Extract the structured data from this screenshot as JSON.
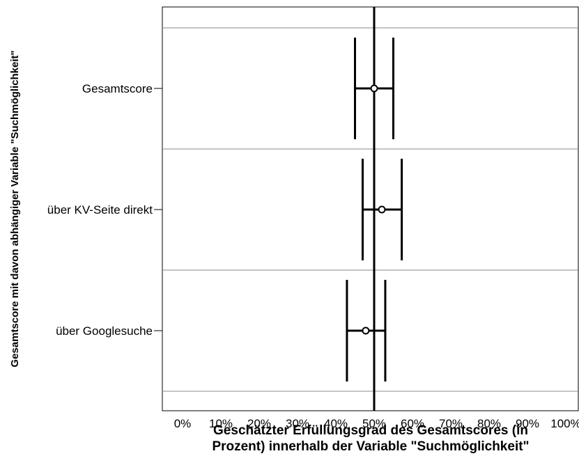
{
  "chart_data": {
    "type": "errorbar",
    "orientation": "horizontal",
    "xlabel_lines": [
      "Geschätzter Erfüllungsgrad des Gesamtscores (in",
      "Prozent) innerhalb der Variable \"Suchmöglichkeit\""
    ],
    "ylabel": "Gesamtscore mit davon abhängiger Variable \"Suchmöglichkeit\"",
    "xlim": [
      0,
      100
    ],
    "x_ticks": [
      0,
      10,
      20,
      30,
      40,
      50,
      60,
      70,
      80,
      90,
      100
    ],
    "x_tick_labels": [
      "0%",
      "10%",
      "20%",
      "30%",
      "40%",
      "50%",
      "60%",
      "70%",
      "80%",
      "90%",
      "100%"
    ],
    "reference_line": 50,
    "categories": [
      "Gesamtscore",
      "über KV-Seite direkt",
      "über Googlesuche"
    ],
    "points": [
      {
        "category": "Gesamtscore",
        "estimate": 50.0,
        "lower": 45.0,
        "upper": 55.0
      },
      {
        "category": "über KV-Seite direkt",
        "estimate": 52.0,
        "lower": 47.0,
        "upper": 57.2
      },
      {
        "category": "über Googlesuche",
        "estimate": 47.8,
        "lower": 42.9,
        "upper": 52.9
      }
    ],
    "grid": "horizontal separators"
  }
}
